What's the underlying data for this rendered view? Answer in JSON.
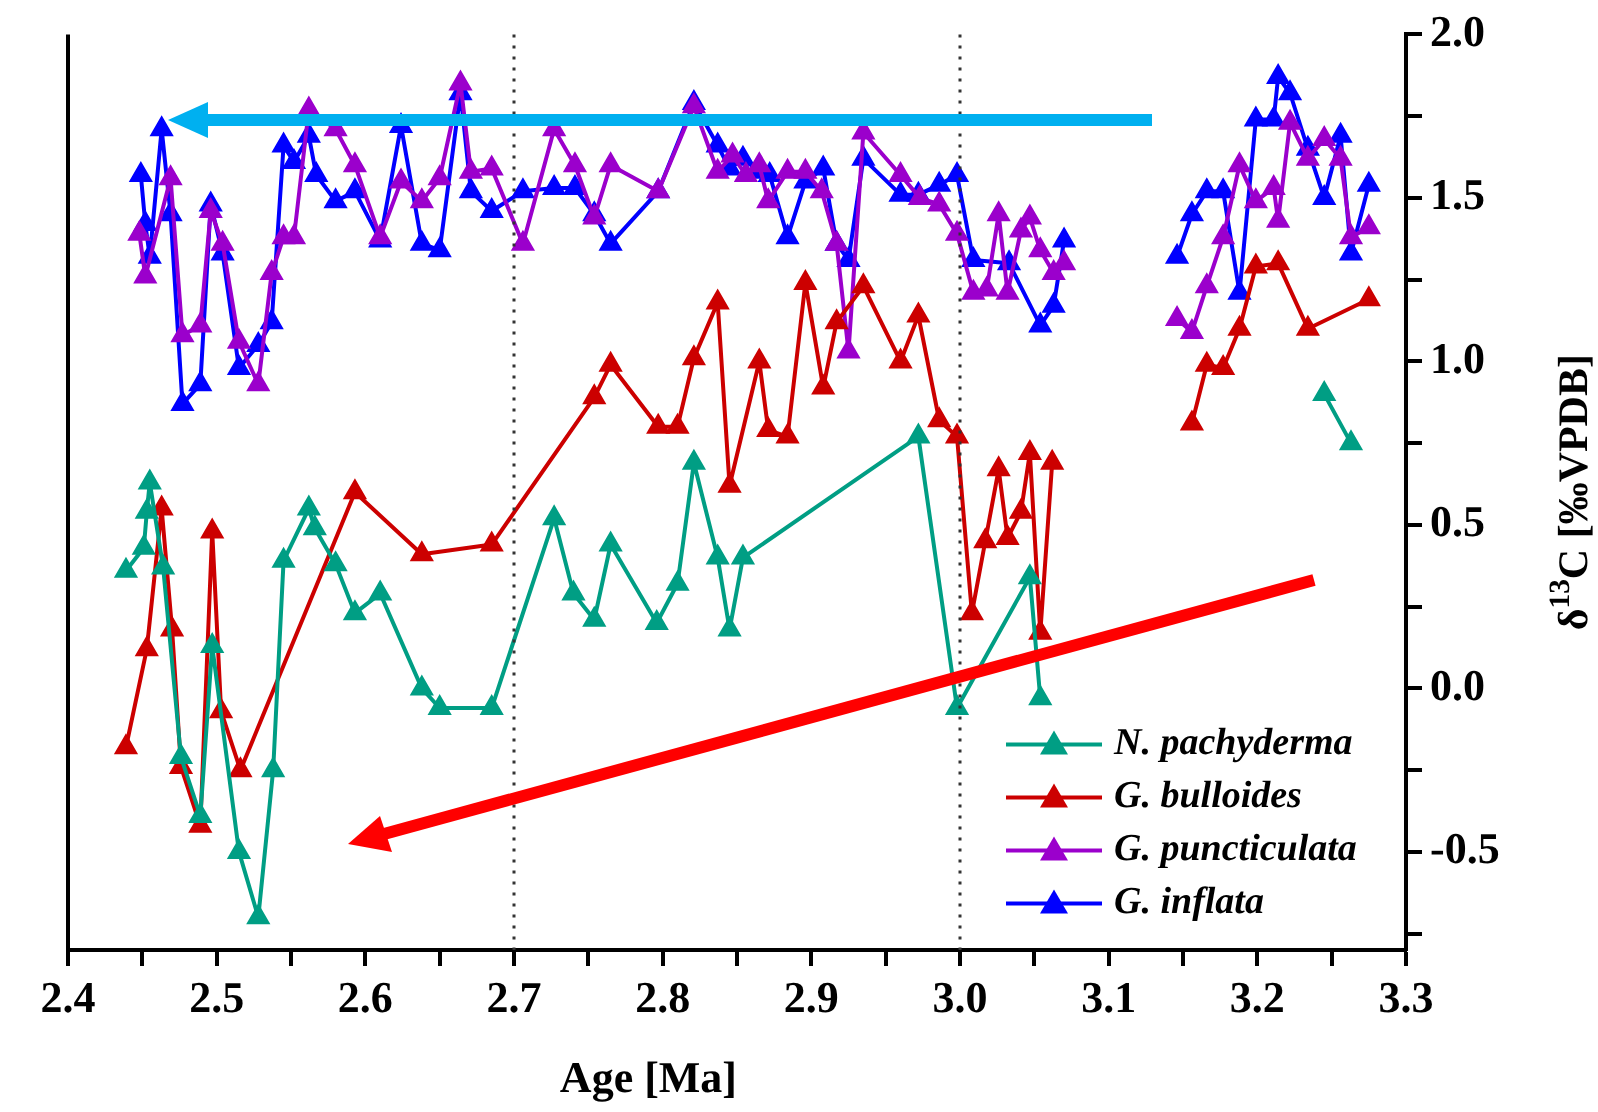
{
  "chart_data": {
    "type": "line",
    "xlabel": "Age [Ma]",
    "ylabel": "δ$^{13}$C [‰VPDB]",
    "xlim": [
      2.4,
      3.3
    ],
    "xticks": [
      2.4,
      {
        "value": 2.45,
        "label": null
      },
      2.5,
      {
        "value": 2.55,
        "label": null
      },
      2.6,
      {
        "value": 2.65,
        "label": null
      },
      2.7,
      {
        "value": 2.75,
        "label": null
      },
      2.8,
      {
        "value": 2.85,
        "label": null
      },
      2.9,
      {
        "value": 2.95,
        "label": null
      },
      {
        "value": 3.0,
        "label": "3.0"
      },
      {
        "value": 3.05,
        "label": null
      },
      3.1,
      {
        "value": 3.15,
        "label": null
      },
      3.2,
      {
        "value": 3.25,
        "label": null
      },
      3.3
    ],
    "ylim": [
      -0.8,
      2.0
    ],
    "yticks": [
      {
        "value": -0.75,
        "label": null
      },
      -0.5,
      {
        "value": -0.25,
        "label": null
      },
      {
        "value": 0,
        "label": "0.0"
      },
      {
        "value": 0.25,
        "label": null
      },
      0.5,
      {
        "value": 0.75,
        "label": null
      },
      {
        "value": 1,
        "label": "1.0"
      },
      {
        "value": 1.25,
        "label": null
      },
      1.5,
      {
        "value": 1.75,
        "label": null
      },
      {
        "value": 2,
        "label": "2.0"
      }
    ],
    "grid": false,
    "legend": "bottom right",
    "marker": "triangle",
    "line_style": "solid",
    "ref_lines": [
      {
        "axis": "x",
        "value": 2.7,
        "color": "#333333",
        "line_style": "dotted"
      },
      {
        "axis": "x",
        "value": 3.0,
        "color": "#333333",
        "line_style": "dotted"
      }
    ],
    "series": [
      {
        "name": "N. pachyderma",
        "color": "#009e84",
        "x": [
          2.439,
          2.451,
          2.453,
          2.455,
          2.464,
          2.476,
          2.489,
          2.497,
          2.515,
          2.528,
          2.538,
          2.545,
          2.562,
          2.566,
          2.58,
          2.593,
          2.61,
          2.638,
          2.65,
          2.685,
          2.727,
          2.74,
          2.754,
          2.765,
          2.796,
          2.81,
          2.821,
          2.837,
          2.845,
          2.854,
          2.972,
          2.998,
          3.047,
          3.054,
          null,
          3.245,
          3.263
        ],
        "values": [
          0.36,
          0.43,
          0.54,
          0.63,
          0.37,
          -0.21,
          -0.39,
          0.13,
          -0.5,
          -0.7,
          -0.25,
          0.39,
          0.55,
          0.49,
          0.38,
          0.23,
          0.29,
          0.0,
          -0.06,
          -0.06,
          0.52,
          0.29,
          0.21,
          0.44,
          0.2,
          0.32,
          0.69,
          0.4,
          0.18,
          0.4,
          0.77,
          -0.06,
          0.34,
          -0.03,
          null,
          0.9,
          0.75
        ]
      },
      {
        "name": "G. bulloides",
        "color": "#cc0000",
        "x": [
          2.439,
          2.453,
          2.463,
          2.47,
          2.476,
          2.489,
          2.497,
          2.503,
          2.516,
          2.593,
          2.638,
          2.685,
          2.754,
          2.765,
          2.797,
          2.81,
          2.821,
          2.837,
          2.845,
          2.865,
          2.871,
          2.884,
          2.896,
          2.908,
          2.917,
          2.935,
          2.96,
          2.972,
          2.986,
          2.998,
          3.008,
          3.017,
          3.026,
          3.032,
          3.041,
          3.047,
          3.054,
          3.062,
          null,
          3.156,
          3.166,
          3.177,
          3.188,
          3.199,
          3.214,
          3.234,
          3.275
        ],
        "values": [
          -0.18,
          0.12,
          0.55,
          0.18,
          -0.24,
          -0.42,
          0.48,
          -0.07,
          -0.25,
          0.6,
          0.41,
          0.44,
          0.89,
          0.99,
          0.8,
          0.8,
          1.01,
          1.18,
          0.62,
          1.0,
          0.79,
          0.77,
          1.24,
          0.92,
          1.12,
          1.23,
          1.0,
          1.14,
          0.82,
          0.77,
          0.23,
          0.45,
          0.67,
          0.46,
          0.54,
          0.72,
          0.17,
          0.69,
          null,
          0.81,
          0.99,
          0.98,
          1.1,
          1.29,
          1.3,
          1.1,
          1.19
        ]
      },
      {
        "name": "G. puncticulata",
        "color": "#9b00cc",
        "x": [
          2.448,
          2.452,
          2.469,
          2.477,
          2.489,
          2.496,
          2.504,
          2.515,
          2.528,
          2.537,
          2.545,
          2.552,
          2.562,
          2.58,
          2.593,
          2.61,
          2.624,
          2.638,
          2.65,
          2.664,
          2.671,
          2.685,
          2.706,
          2.727,
          2.741,
          2.754,
          2.765,
          2.797,
          2.821,
          2.837,
          2.847,
          2.856,
          2.865,
          2.871,
          2.884,
          2.896,
          2.907,
          2.917,
          2.925,
          2.935,
          2.96,
          2.973,
          2.986,
          2.998,
          3.009,
          3.018,
          3.026,
          3.032,
          3.041,
          3.047,
          3.054,
          3.063,
          3.07,
          null,
          3.146,
          3.156,
          3.166,
          3.177,
          3.188,
          3.199,
          3.211,
          3.214,
          3.222,
          3.234,
          3.245,
          3.256,
          3.263,
          3.275
        ],
        "values": [
          1.39,
          1.26,
          1.56,
          1.08,
          1.11,
          1.46,
          1.36,
          1.06,
          0.93,
          1.27,
          1.38,
          1.38,
          1.77,
          1.71,
          1.6,
          1.38,
          1.55,
          1.49,
          1.56,
          1.85,
          1.58,
          1.59,
          1.36,
          1.71,
          1.6,
          1.44,
          1.6,
          1.52,
          1.78,
          1.58,
          1.63,
          1.57,
          1.6,
          1.49,
          1.58,
          1.58,
          1.52,
          1.36,
          1.03,
          1.7,
          1.57,
          1.5,
          1.48,
          1.39,
          1.21,
          1.22,
          1.45,
          1.21,
          1.4,
          1.44,
          1.34,
          1.27,
          1.3,
          null,
          1.13,
          1.09,
          1.23,
          1.38,
          1.6,
          1.49,
          1.53,
          1.43,
          1.73,
          1.62,
          1.68,
          1.62,
          1.38,
          1.41
        ]
      },
      {
        "name": "G. inflata",
        "color": "#0000ff",
        "x": [
          2.449,
          2.452,
          2.455,
          2.463,
          2.469,
          2.477,
          2.489,
          2.496,
          2.504,
          2.515,
          2.528,
          2.537,
          2.545,
          2.552,
          2.562,
          2.567,
          2.58,
          2.593,
          2.61,
          2.624,
          2.638,
          2.65,
          2.664,
          2.671,
          2.685,
          2.706,
          2.727,
          2.741,
          2.754,
          2.765,
          2.797,
          2.821,
          2.837,
          2.845,
          2.854,
          2.865,
          2.872,
          2.884,
          2.896,
          2.908,
          2.917,
          2.925,
          2.935,
          2.96,
          2.972,
          2.986,
          2.998,
          3.009,
          3.033,
          3.054,
          3.063,
          3.07,
          null,
          3.146,
          3.156,
          3.166,
          3.177,
          3.188,
          3.199,
          3.211,
          3.214,
          3.222,
          3.234,
          3.245,
          3.256,
          3.263,
          3.275
        ],
        "values": [
          1.57,
          1.42,
          1.32,
          1.71,
          1.45,
          0.87,
          0.93,
          1.48,
          1.33,
          0.98,
          1.05,
          1.12,
          1.66,
          1.61,
          1.69,
          1.57,
          1.49,
          1.52,
          1.37,
          1.72,
          1.36,
          1.34,
          1.82,
          1.52,
          1.46,
          1.52,
          1.53,
          1.53,
          1.45,
          1.36,
          1.52,
          1.79,
          1.66,
          1.59,
          1.62,
          1.58,
          1.57,
          1.38,
          1.55,
          1.59,
          1.36,
          1.31,
          1.62,
          1.51,
          1.51,
          1.54,
          1.57,
          1.31,
          1.3,
          1.11,
          1.17,
          1.37,
          null,
          1.32,
          1.45,
          1.52,
          1.52,
          1.21,
          1.74,
          1.74,
          1.87,
          1.82,
          1.65,
          1.5,
          1.69,
          1.33,
          1.54
        ]
      }
    ]
  }
}
